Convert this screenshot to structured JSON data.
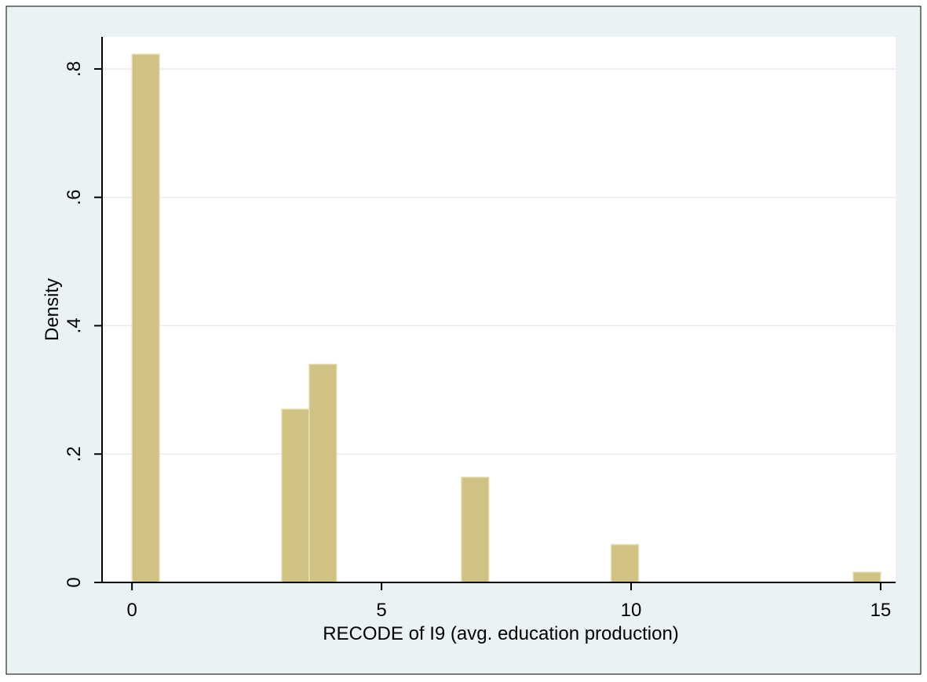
{
  "chart_data": {
    "type": "bar",
    "title": "",
    "xlabel": "RECODE of I9 (avg. education production)",
    "ylabel": "Density",
    "xlim": [
      -0.6,
      15.3
    ],
    "ylim": [
      0,
      0.85
    ],
    "x_ticks": [
      {
        "value": 0,
        "label": "0"
      },
      {
        "value": 5,
        "label": "5"
      },
      {
        "value": 10,
        "label": "10"
      },
      {
        "value": 15,
        "label": "15"
      }
    ],
    "y_ticks": [
      {
        "value": 0,
        "label": "0"
      },
      {
        "value": 0.2,
        "label": ".2"
      },
      {
        "value": 0.4,
        "label": ".4"
      },
      {
        "value": 0.6,
        "label": ".6"
      },
      {
        "value": 0.8,
        "label": ".8"
      }
    ],
    "grid": true,
    "bins": [
      {
        "x0": 0.0,
        "x1": 0.55,
        "density": 0.823
      },
      {
        "x0": 3.0,
        "x1": 3.55,
        "density": 0.27
      },
      {
        "x0": 3.55,
        "x1": 4.1,
        "density": 0.34
      },
      {
        "x0": 6.6,
        "x1": 7.15,
        "density": 0.164
      },
      {
        "x0": 9.6,
        "x1": 10.15,
        "density": 0.059
      },
      {
        "x0": 14.45,
        "x1": 15.0,
        "density": 0.016
      }
    ],
    "colors": {
      "outer_background": "#eaf2f3",
      "plot_background": "#ffffff",
      "bar_fill": "#cfc282",
      "bar_stroke": "#e8e0b4",
      "grid": "#e4eef0",
      "axis": "#000000"
    }
  }
}
